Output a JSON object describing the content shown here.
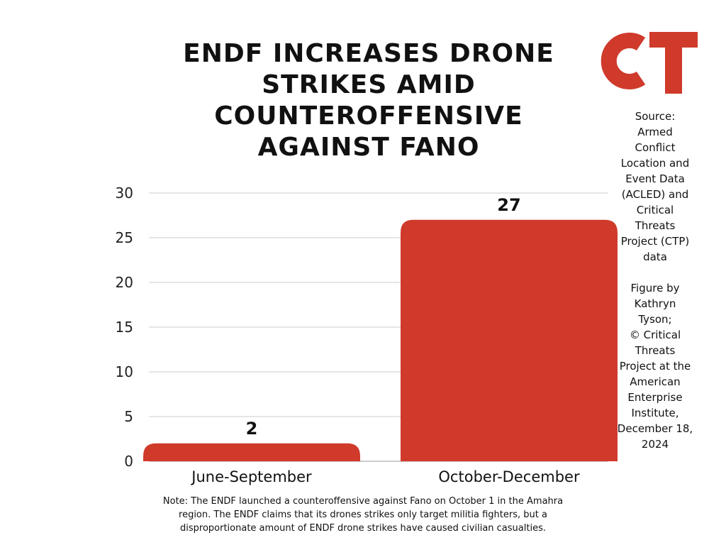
{
  "title_lines": [
    "ENDF INCREASES DRONE",
    "STRIKES AMID",
    "COUNTEROFFENSIVE",
    "AGAINST FANO"
  ],
  "logo": {
    "text": "CT",
    "color": "#cf3a2b"
  },
  "source_lines": [
    "Source:",
    "Armed",
    "Conflict",
    "Location and",
    "Event Data",
    "(ACLED) and",
    "Critical",
    "Threats",
    "Project (CTP)",
    "data"
  ],
  "credit_lines": [
    "Figure by",
    "Kathryn",
    "Tyson;",
    "© Critical",
    "Threats",
    "Project at the",
    "American",
    "Enterprise",
    "Institute,",
    "December 18,",
    "2024"
  ],
  "note_lines": [
    "Note: The ENDF launched a counteroffensive against Fano on October 1 in the Amahra",
    "region. The ENDF claims that its drones strikes only target militia fighters, but a",
    "disproportionate amount of ENDF drone strikes have caused civilian casualties."
  ],
  "chart_data": {
    "type": "bar",
    "categories": [
      "June-September",
      "October-December"
    ],
    "values": [
      2,
      27
    ],
    "data_labels": [
      "2",
      "27"
    ],
    "ylim": [
      0,
      30
    ],
    "yticks": [
      "0",
      "5",
      "10",
      "15",
      "20",
      "25",
      "30"
    ],
    "grid": true,
    "bar_color": "#cf3a2b",
    "grid_color": "#cccccc"
  }
}
